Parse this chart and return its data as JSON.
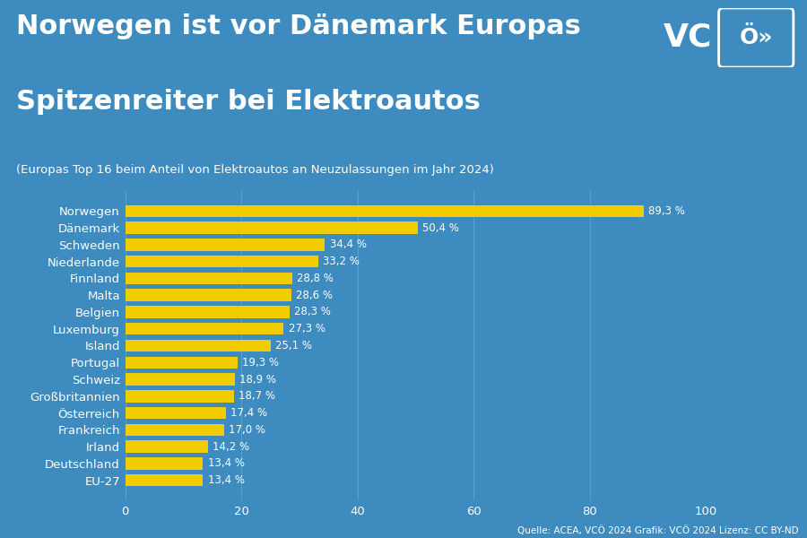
{
  "title_line1": "Norwegen ist vor Dänemark Europas",
  "title_line2": "Spitzenreiter bei Elektroautos",
  "subtitle": "(Europas Top 16 beim Anteil von Elektroautos an Neuzulassungen im Jahr 2024)",
  "source": "Quelle: ACEA, VCÖ 2024 Grafik: VCÖ 2024 Lizenz: CC BY-ND",
  "background_color": "#3d8bbf",
  "bar_color": "#f0cc00",
  "text_color": "#ffffff",
  "categories": [
    "Norwegen",
    "Dänemark",
    "Schweden",
    "Niederlande",
    "Finnland",
    "Malta",
    "Belgien",
    "Luxemburg",
    "Island",
    "Portugal",
    "Schweiz",
    "Großbritannien",
    "Österreich",
    "Frankreich",
    "Irland",
    "Deutschland",
    "EU-27"
  ],
  "values": [
    89.3,
    50.4,
    34.4,
    33.2,
    28.8,
    28.6,
    28.3,
    27.3,
    25.1,
    19.3,
    18.9,
    18.7,
    17.4,
    17.0,
    14.2,
    13.4,
    13.4
  ],
  "xlim": [
    0,
    100
  ],
  "xticks": [
    0,
    20,
    40,
    60,
    80,
    100
  ],
  "grid_color": "#5aa0cc",
  "bar_height": 0.72,
  "figsize": [
    9.0,
    6.0
  ],
  "dpi": 100,
  "title_fontsize": 22,
  "subtitle_fontsize": 9.5,
  "label_fontsize": 8.5,
  "tick_fontsize": 9.5
}
